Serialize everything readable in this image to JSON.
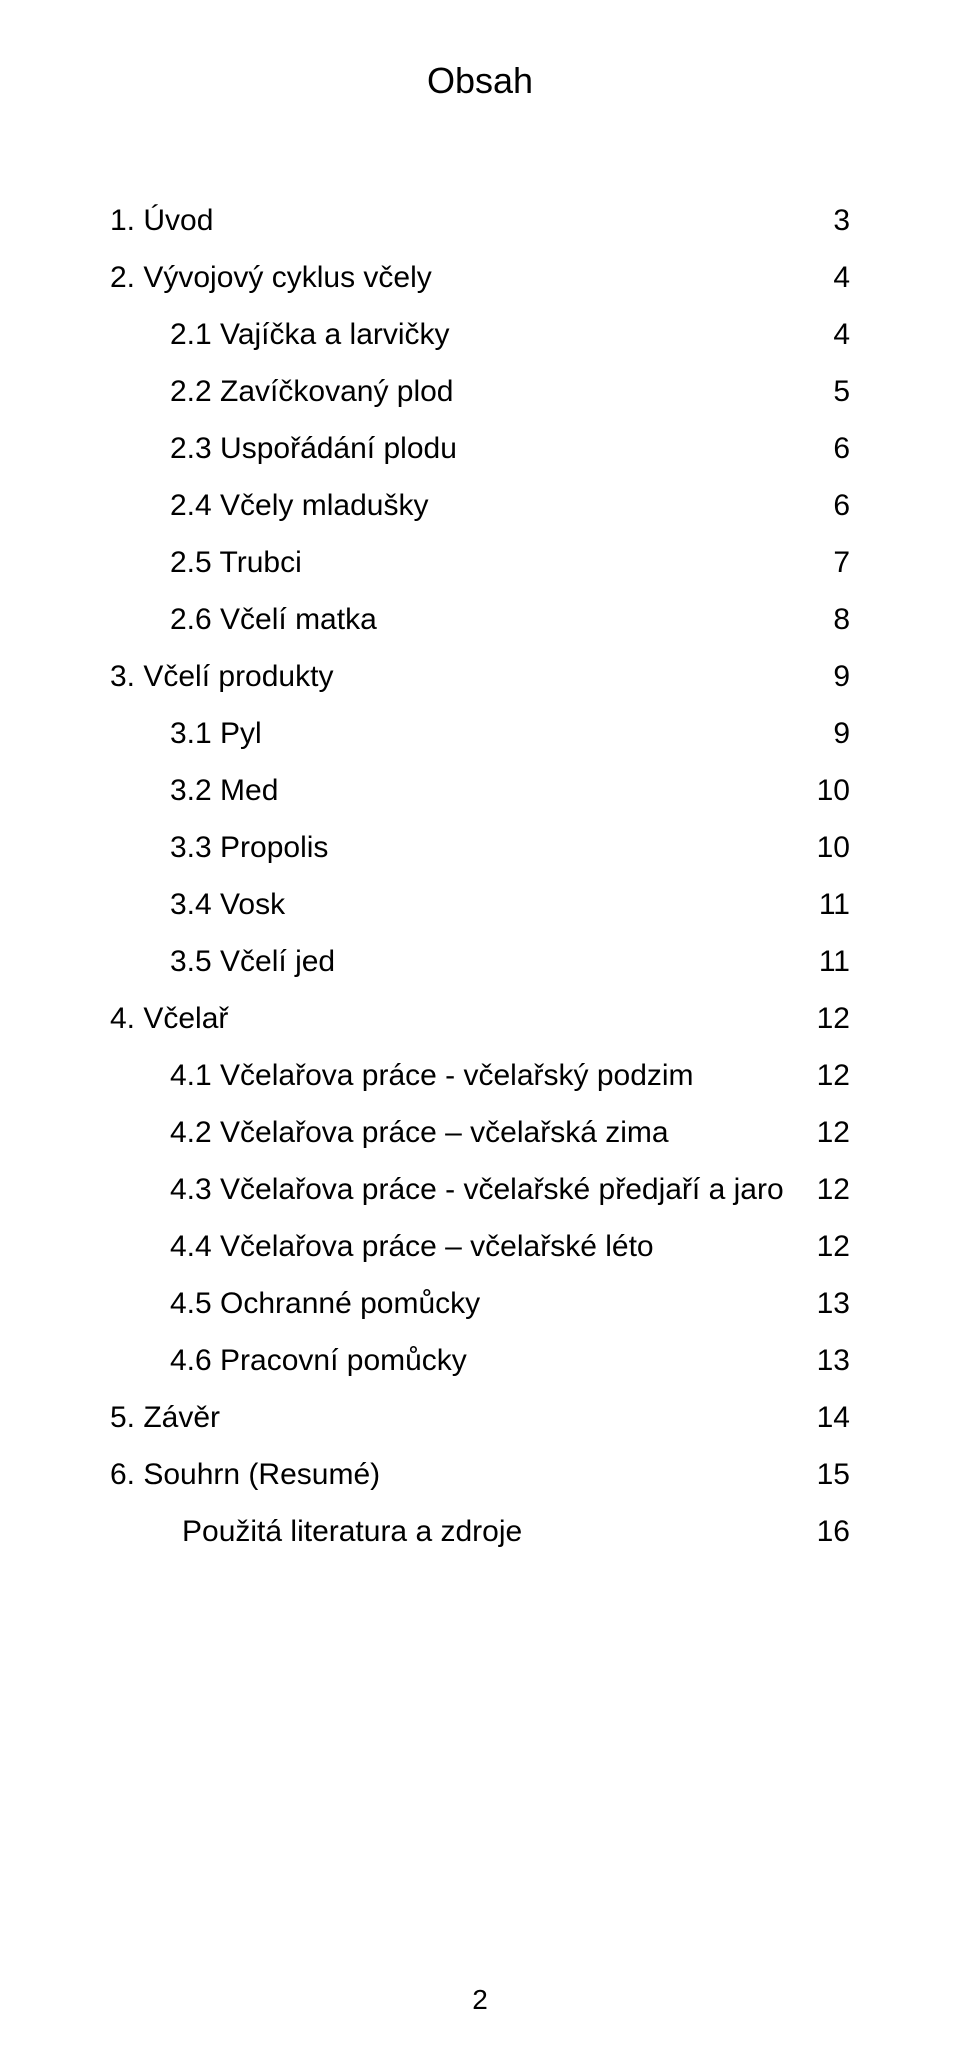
{
  "title": "Obsah",
  "entries": [
    {
      "label": "1. Úvod",
      "page": "3",
      "indent": 0
    },
    {
      "label": "2. Vývojový cyklus včely",
      "page": "4",
      "indent": 0
    },
    {
      "label": "2.1   Vajíčka a larvičky",
      "page": "4",
      "indent": 1
    },
    {
      "label": "2.2   Zavíčkovaný plod",
      "page": "5",
      "indent": 1
    },
    {
      "label": "2.3   Uspořádání plodu",
      "page": "6",
      "indent": 1
    },
    {
      "label": "2.4   Včely mladušky",
      "page": "6",
      "indent": 1
    },
    {
      "label": "2.5   Trubci",
      "page": "7",
      "indent": 1
    },
    {
      "label": "2.6   Včelí matka",
      "page": "8",
      "indent": 1
    },
    {
      "label": "3. Včelí produkty",
      "page": "9",
      "indent": 0
    },
    {
      "label": "3.1   Pyl",
      "page": "9",
      "indent": 1
    },
    {
      "label": "3.2   Med",
      "page": "10",
      "indent": 1
    },
    {
      "label": "3.3   Propolis",
      "page": "10",
      "indent": 1
    },
    {
      "label": "3.4   Vosk",
      "page": "11",
      "indent": 1
    },
    {
      "label": "3.5   Včelí jed",
      "page": "11",
      "indent": 1
    },
    {
      "label": "4. Včelař",
      "page": "12",
      "indent": 0
    },
    {
      "label": "4.1   Včelařova práce - včelařský podzim",
      "page": "12",
      "indent": 1
    },
    {
      "label": "4.2   Včelařova práce – včelařská zima",
      "page": "12",
      "indent": 1
    },
    {
      "label": "4.3   Včelařova práce - včelařské předjaří a jaro",
      "page": "12",
      "indent": 1
    },
    {
      "label": "4.4   Včelařova práce – včelařské léto",
      "page": "12",
      "indent": 1
    },
    {
      "label": "4.5    Ochranné pomůcky",
      "page": "13",
      "indent": 1
    },
    {
      "label": "4.6    Pracovní pomůcky",
      "page": "13",
      "indent": 1
    },
    {
      "label": "5. Závěr",
      "page": "14",
      "indent": 0
    },
    {
      "label": "6. Souhrn (Resumé)",
      "page": "15",
      "indent": 0
    },
    {
      "label": "Použitá literatura a zdroje",
      "page": "16",
      "indent": 2
    }
  ],
  "pageNumber": "2",
  "style": {
    "backgroundColor": "#ffffff",
    "textColor": "#000000",
    "titleFontSize": 36,
    "bodyFontSize": 30,
    "lineHeight": 1.9,
    "pageNumFontSize": 28
  }
}
